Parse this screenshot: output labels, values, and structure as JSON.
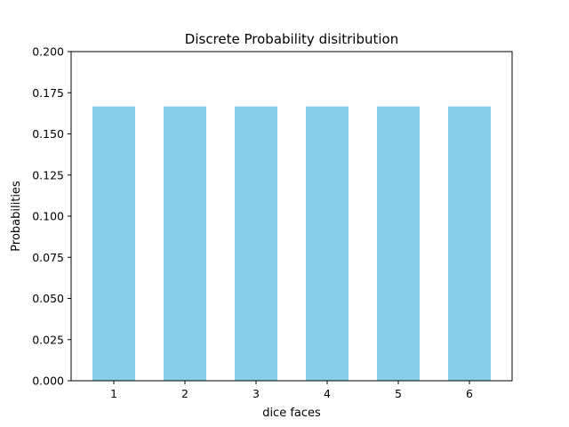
{
  "chart_data": {
    "type": "bar",
    "title": "Discrete Probability disitribution",
    "xlabel": "dice faces",
    "ylabel": "Probabilities",
    "categories": [
      "1",
      "2",
      "3",
      "4",
      "5",
      "6"
    ],
    "values": [
      0.1667,
      0.1667,
      0.1667,
      0.1667,
      0.1667,
      0.1667
    ],
    "ylim": [
      0,
      0.2
    ],
    "yticks": [
      "0.000",
      "0.025",
      "0.050",
      "0.075",
      "0.100",
      "0.125",
      "0.150",
      "0.175",
      "0.200"
    ],
    "bar_color": "#87CEEB",
    "grid": false,
    "legend": "none"
  }
}
